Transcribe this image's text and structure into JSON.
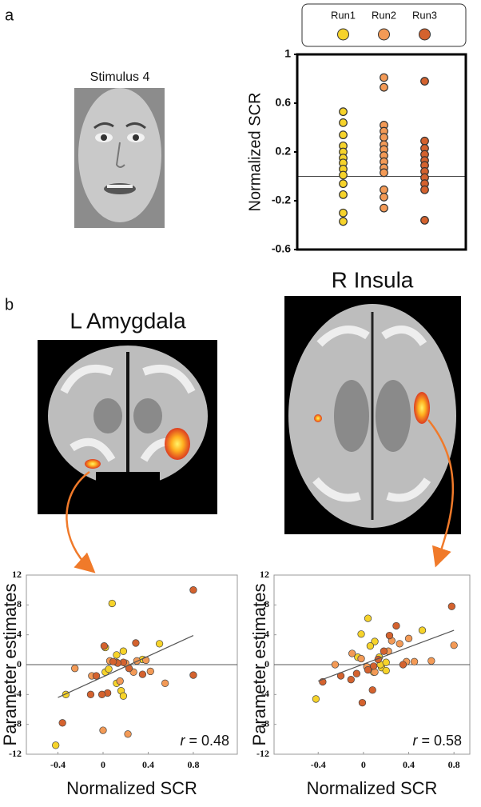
{
  "panel_labels": [
    "a",
    "b"
  ],
  "images": [
    {
      "title": "Stimulus 4"
    },
    {
      "title": "L Amygdala"
    },
    {
      "title": "R Insula"
    }
  ],
  "chart_data": [
    {
      "type": "strip",
      "ylabel": "Normalized SCR",
      "ylim": [
        -0.6,
        1
      ],
      "yticks": [
        -0.6,
        -0.2,
        0.2,
        0.6,
        1
      ],
      "hline": 0,
      "series": [
        {
          "name": "Run1",
          "color": "#f6d32a",
          "values": [
            0.53,
            0.44,
            0.34,
            0.25,
            0.2,
            0.15,
            0.11,
            0.06,
            0.01,
            -0.06,
            -0.15,
            -0.3,
            -0.37
          ]
        },
        {
          "name": "Run2",
          "color": "#f39a56",
          "values": [
            0.81,
            0.73,
            0.42,
            0.37,
            0.32,
            0.26,
            0.22,
            0.17,
            0.12,
            0.07,
            0.03,
            -0.11,
            -0.17,
            -0.26
          ]
        },
        {
          "name": "Run3",
          "color": "#d4622e",
          "values": [
            0.78,
            0.29,
            0.23,
            0.18,
            0.13,
            0.09,
            0.04,
            -0.01,
            -0.06,
            -0.11,
            -0.36
          ]
        }
      ]
    },
    {
      "type": "scatter",
      "xlabel": "Normalized SCR",
      "ylabel": "Parameter estimates",
      "xlim": [
        -0.68,
        1.19
      ],
      "ylim": [
        -12,
        12
      ],
      "xticks": [
        -0.4,
        0,
        0.4,
        0.8
      ],
      "yticks": [
        -12,
        -8,
        -4,
        0,
        4,
        8,
        12
      ],
      "hline": 0,
      "series": [
        {
          "color": "#f6d32a",
          "x": [
            -0.42,
            -0.33,
            0.08,
            0.02,
            0.05,
            0.12,
            0.16,
            0.18,
            0.12,
            0.18,
            0.5,
            0.35,
            0.02
          ],
          "y": [
            -10.8,
            -4,
            8.2,
            -1,
            -0.6,
            -2.5,
            -3.5,
            -4.2,
            1.3,
            1.8,
            2.8,
            0.7,
            2.3
          ]
        },
        {
          "color": "#f39a56",
          "x": [
            -0.25,
            0.06,
            0.12,
            0.2,
            0.3,
            0.38,
            0.55,
            0.22,
            0,
            0.15,
            -0.1,
            0.27,
            0.42
          ],
          "y": [
            -0.5,
            0.5,
            0.3,
            0.2,
            0.5,
            0.6,
            -2.5,
            -9.3,
            -8.8,
            -2.2,
            -1.5,
            -1,
            -0.9
          ]
        },
        {
          "color": "#d4622e",
          "x": [
            0.8,
            0.29,
            0.23,
            0.18,
            0.13,
            0.09,
            0.04,
            -0.01,
            -0.06,
            -0.11,
            -0.36,
            0.8,
            0.01,
            0.35
          ],
          "y": [
            10,
            2.9,
            -0.5,
            0.3,
            0.2,
            0.4,
            -3.8,
            -4,
            -1.5,
            -4,
            -7.8,
            -1.4,
            2.5,
            -1.3
          ]
        }
      ],
      "fit": {
        "x": [
          -0.4,
          0.8
        ],
        "y": [
          -4.4,
          3.9
        ]
      },
      "annotation": {
        "symbol": "r",
        "text": "= 0.48"
      }
    },
    {
      "type": "scatter",
      "xlabel": "Normalized SCR",
      "ylabel": "Parameter estimates",
      "xlim": [
        -0.79,
        0.94
      ],
      "ylim": [
        -12,
        12
      ],
      "xticks": [
        -0.4,
        0,
        0.4,
        0.8
      ],
      "yticks": [
        -12,
        -8,
        -4,
        0,
        4,
        8,
        12
      ],
      "hline": 0,
      "series": [
        {
          "color": "#f6d32a",
          "x": [
            -0.42,
            -0.02,
            0.04,
            0.1,
            0.06,
            0.14,
            0.16,
            0.2,
            0.15,
            0.52,
            0.09,
            -0.05,
            0.2
          ],
          "y": [
            -4.6,
            4.1,
            6.2,
            3.1,
            2.5,
            1,
            -0.4,
            -0.8,
            0,
            4.6,
            -1,
            1,
            0.3
          ]
        },
        {
          "color": "#f39a56",
          "x": [
            -0.25,
            -0.1,
            0.03,
            0.1,
            0.25,
            0.32,
            0.4,
            0.45,
            0.6,
            0.8,
            0.22,
            0.38,
            -0.02
          ],
          "y": [
            0,
            1.5,
            -0.3,
            -1,
            3.2,
            2.8,
            3.5,
            0.4,
            0.5,
            2.6,
            1.8,
            0.4,
            0.8
          ]
        },
        {
          "color": "#d4622e",
          "x": [
            0.78,
            0.29,
            0.23,
            0.18,
            0.13,
            0.09,
            0.04,
            -0.01,
            -0.06,
            -0.11,
            -0.36,
            0.35,
            -0.2,
            0.08
          ],
          "y": [
            7.8,
            5.2,
            3.9,
            1.8,
            0.7,
            -0.2,
            -0.7,
            -5.1,
            -1.2,
            -2,
            -2.3,
            0,
            -1.5,
            -3.4
          ]
        }
      ],
      "fit": {
        "x": [
          -0.4,
          0.8
        ],
        "y": [
          -2.2,
          4.6
        ]
      },
      "annotation": {
        "symbol": "r",
        "text": "= 0.58"
      }
    }
  ]
}
